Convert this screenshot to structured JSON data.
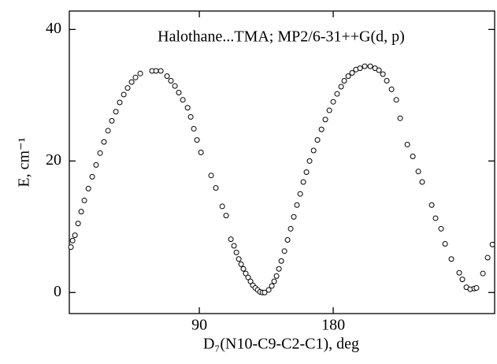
{
  "chart_data": {
    "type": "scatter",
    "annotation": "Halothane...TMA; MP2/6-31++G(d, p)",
    "x_label": "D₇(N10-C9-C2-C1), deg",
    "y_label": "E, cm⁻¹",
    "xlim": [
      2.6,
      288.5
    ],
    "ylim": [
      -3.2,
      42.8
    ],
    "xticks": [
      90,
      180
    ],
    "yticks": [
      0,
      20,
      40
    ],
    "marker_color": "#000000",
    "x": [
      3.7,
      4.8,
      6.4,
      8.5,
      10.6,
      12.7,
      15.4,
      18.0,
      20.6,
      23.3,
      25.9,
      28.6,
      31.2,
      33.9,
      36.5,
      39.2,
      41.8,
      44.5,
      47.1,
      50.3,
      58.2,
      60.9,
      64.1,
      68.3,
      70.9,
      73.6,
      76.2,
      78.9,
      82.1,
      84.2,
      86.3,
      88.4,
      91.1,
      97.9,
      101.1,
      105.4,
      108.0,
      111.2,
      113.3,
      114.9,
      116.5,
      118.1,
      119.6,
      121.2,
      122.8,
      124.4,
      126.0,
      127.6,
      129.2,
      130.8,
      132.4,
      133.9,
      136.6,
      138.7,
      140.3,
      141.9,
      143.5,
      145.1,
      147.2,
      149.3,
      151.4,
      153.5,
      155.6,
      157.8,
      159.9,
      162.0,
      164.1,
      166.8,
      169.4,
      172.1,
      174.7,
      177.4,
      180.0,
      182.6,
      185.3,
      187.4,
      190.1,
      192.7,
      195.3,
      198.0,
      201.2,
      204.9,
      208.1,
      210.7,
      213.4,
      216.0,
      219.2,
      222.4,
      225.0,
      229.8,
      233.5,
      237.2,
      239.8,
      246.2,
      248.8,
      252.5,
      255.2,
      259.4,
      264.7,
      266.8,
      269.5,
      272.1,
      274.8,
      276.3,
      280.6,
      283.8,
      287.0
    ],
    "values": [
      6.9,
      7.9,
      8.7,
      10.5,
      12.3,
      14.0,
      15.8,
      17.6,
      19.4,
      21.2,
      22.9,
      24.6,
      26.1,
      27.5,
      28.9,
      30.1,
      31.1,
      32.0,
      32.7,
      33.3,
      33.7,
      33.7,
      33.7,
      32.9,
      32.2,
      31.4,
      30.4,
      29.3,
      28.1,
      26.7,
      24.9,
      23.2,
      21.3,
      17.8,
      15.9,
      13.1,
      11.7,
      8.1,
      7.1,
      6.1,
      5.1,
      4.3,
      3.6,
      2.9,
      2.3,
      1.7,
      1.1,
      0.7,
      0.4,
      0.1,
      0,
      0,
      0.4,
      1.0,
      1.7,
      2.5,
      3.6,
      4.8,
      6.3,
      8.0,
      9.7,
      11.5,
      13.3,
      15.0,
      16.8,
      18.3,
      20.0,
      21.6,
      23.2,
      24.8,
      26.3,
      27.7,
      29.0,
      30.2,
      31.3,
      32.2,
      32.9,
      33.4,
      33.9,
      34.1,
      34.4,
      34.4,
      34.1,
      33.8,
      33.2,
      32.2,
      30.9,
      29.3,
      26.5,
      22.5,
      20.7,
      18.4,
      16.8,
      13.3,
      11.3,
      9.7,
      7.4,
      5.1,
      3.0,
      2.0,
      0.8,
      0.5,
      0.6,
      0.7,
      2.9,
      5.3,
      7.3
    ]
  }
}
